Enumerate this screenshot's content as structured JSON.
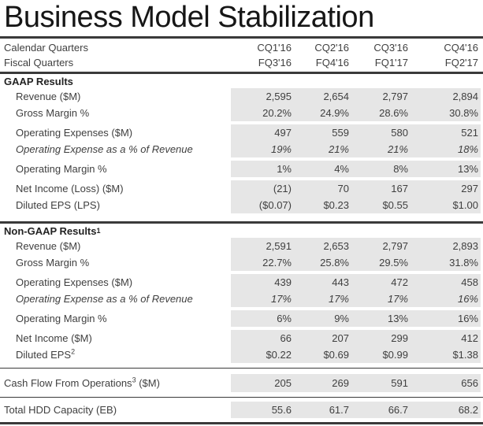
{
  "title": "Business Model Stabilization",
  "colors": {
    "band": "#e6e6e6",
    "line": "#3a3a3a",
    "text": "#3f3f3f",
    "heading": "#161616"
  },
  "quarters_header": {
    "rows": [
      {
        "label": "Calendar Quarters",
        "values": [
          "CQ1'16",
          "CQ2'16",
          "CQ3'16",
          "CQ4'16"
        ]
      },
      {
        "label": "Fiscal Quarters",
        "values": [
          "FQ3'16",
          "FQ4'16",
          "FQ1'17",
          "FQ2'17"
        ]
      }
    ]
  },
  "sections": [
    {
      "title": "GAAP Results",
      "footnote": "",
      "groups": [
        {
          "rows": [
            {
              "label": "Revenue ($M)",
              "values": [
                "2,595",
                "2,654",
                "2,797",
                "2,894"
              ]
            },
            {
              "label": "Gross Margin %",
              "values": [
                "20.2%",
                "24.9%",
                "28.6%",
                "30.8%"
              ]
            }
          ]
        },
        {
          "rows": [
            {
              "label": "Operating Expenses ($M)",
              "values": [
                "497",
                "559",
                "580",
                "521"
              ]
            },
            {
              "label": "Operating Expense as a % of Revenue",
              "italic": true,
              "values": [
                "19%",
                "21%",
                "21%",
                "18%"
              ]
            }
          ]
        },
        {
          "rows": [
            {
              "label": "Operating Margin %",
              "values": [
                "1%",
                "4%",
                "8%",
                "13%"
              ]
            }
          ]
        },
        {
          "rows": [
            {
              "label": "Net Income (Loss) ($M)",
              "values": [
                "(21)",
                "70",
                "167",
                "297"
              ]
            },
            {
              "label": "Diluted EPS (LPS)",
              "values": [
                "($0.07)",
                "$0.23",
                "$0.55",
                "$1.00"
              ]
            }
          ]
        }
      ]
    },
    {
      "title": "Non-GAAP Results",
      "footnote": "1",
      "groups": [
        {
          "rows": [
            {
              "label": "Revenue ($M)",
              "values": [
                "2,591",
                "2,653",
                "2,797",
                "2,893"
              ]
            },
            {
              "label": "Gross Margin %",
              "values": [
                "22.7%",
                "25.8%",
                "29.5%",
                "31.8%"
              ]
            }
          ]
        },
        {
          "rows": [
            {
              "label": "Operating Expenses ($M)",
              "values": [
                "439",
                "443",
                "472",
                "458"
              ]
            },
            {
              "label": "Operating Expense as a % of Revenue",
              "italic": true,
              "values": [
                "17%",
                "17%",
                "17%",
                "16%"
              ]
            }
          ]
        },
        {
          "rows": [
            {
              "label": "Operating Margin %",
              "values": [
                "6%",
                "9%",
                "13%",
                "16%"
              ]
            }
          ]
        },
        {
          "rows": [
            {
              "label": "Net Income ($M)",
              "values": [
                "66",
                "207",
                "299",
                "412"
              ]
            },
            {
              "label": "Diluted EPS",
              "footnote": "2",
              "values": [
                "$0.22",
                "$0.69",
                "$0.99",
                "$1.38"
              ]
            }
          ]
        }
      ]
    }
  ],
  "summary_rows": [
    {
      "label": "Cash Flow From Operations",
      "footnote": "3",
      "suffix": " ($M)",
      "values": [
        "205",
        "269",
        "591",
        "656"
      ]
    },
    {
      "label": "Total HDD Capacity (EB)",
      "values": [
        "55.6",
        "61.7",
        "66.7",
        "68.2"
      ]
    }
  ]
}
